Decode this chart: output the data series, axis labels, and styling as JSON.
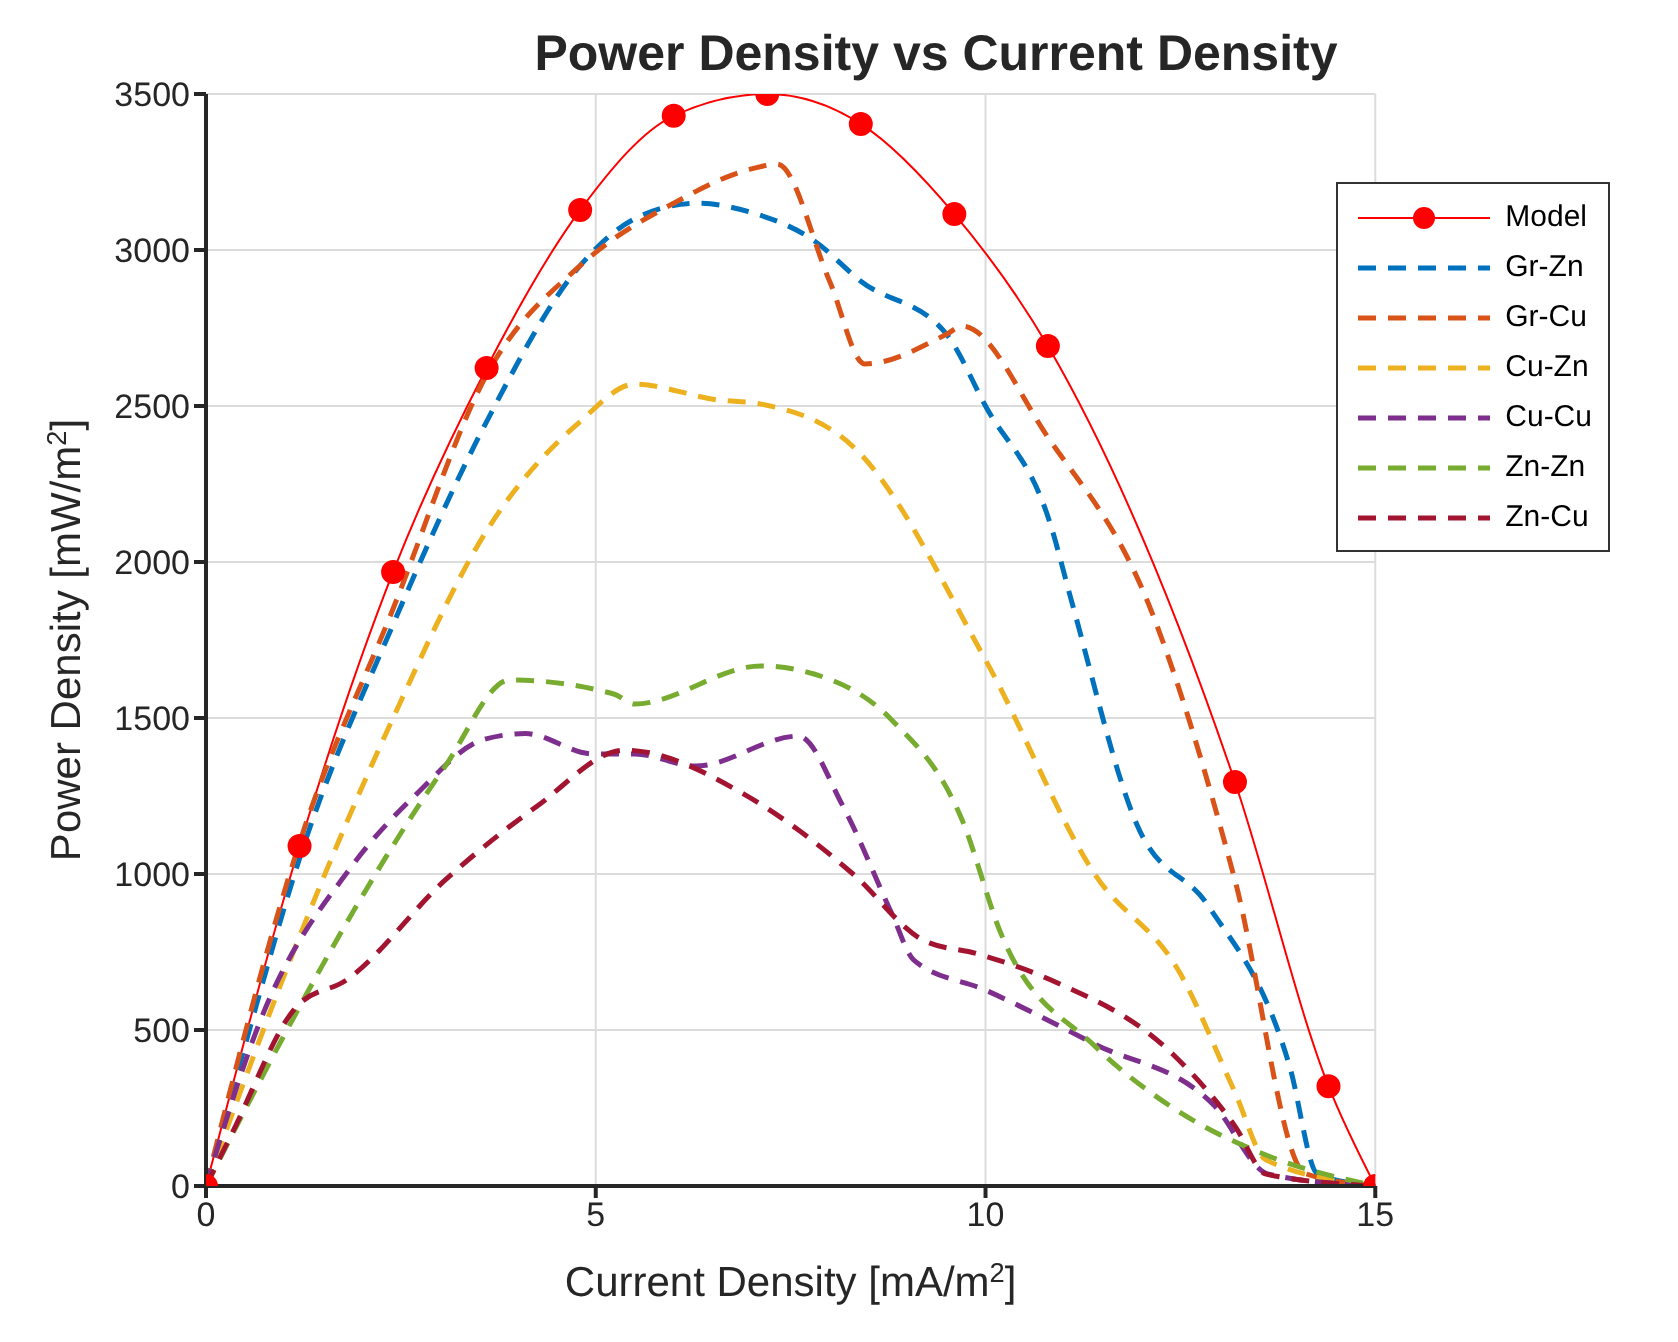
{
  "chart_data": {
    "type": "line",
    "title": "Power Density vs Current Density",
    "xlabel": "Current Density [mA/m$^{2}$]",
    "ylabel": "Power Density [mW/m$^{2}$]",
    "xlim": [
      0,
      15
    ],
    "xticks": [
      0,
      5,
      10,
      15
    ],
    "ylim": [
      0,
      3500
    ],
    "yticks": [
      0,
      500,
      1000,
      1500,
      2000,
      2500,
      3000,
      3500
    ],
    "grid": true,
    "legend": "top right",
    "series": [
      {
        "name": "Model",
        "color": "#ff0000",
        "marker": "circle",
        "line_style": "solid",
        "x": [
          0,
          1.2,
          2.4,
          3.6,
          4.8,
          6,
          7.2,
          8.4,
          9.6,
          10.8,
          12,
          13.2,
          14.4,
          15
        ],
        "values": [
          0,
          1090,
          1968,
          2622,
          3128,
          3430,
          3500,
          3404,
          3115,
          2692,
          null,
          1295,
          320,
          0
        ]
      },
      {
        "name": "Gr-Zn",
        "color": "#0072bd",
        "marker": "none",
        "line_style": "dashed",
        "x": [
          0,
          0.5,
          1.2,
          2.4,
          3.6,
          4.8,
          5.5,
          6.3,
          7,
          7.8,
          8.4,
          9.5,
          10,
          10.84,
          11.1,
          11.95,
          12.86,
          13.9,
          14.26,
          15
        ],
        "values": [
          0,
          450,
          1050,
          1800,
          2450,
          2950,
          3100,
          3150,
          3120,
          3030,
          2900,
          2730,
          2500,
          2115,
          1878,
          1154,
          897,
          385,
          38,
          0
        ]
      },
      {
        "name": "Gr-Cu",
        "color": "#d95319",
        "marker": "none",
        "line_style": "dashed",
        "x": [
          0,
          1.2,
          2.4,
          3.6,
          4.8,
          6,
          7,
          7.33,
          8,
          8.45,
          9.5,
          9.7,
          10.8,
          12.1,
          13.2,
          14.1,
          15
        ],
        "values": [
          0,
          1100,
          1850,
          2600,
          2950,
          3150,
          3260,
          3275,
          2900,
          2635,
          2730,
          2756,
          2400,
          1860,
          980,
          40,
          0
        ]
      },
      {
        "name": "Cu-Zn",
        "color": "#edb120",
        "marker": "none",
        "line_style": "dashed",
        "x": [
          0,
          1.2,
          2.4,
          3.6,
          4.8,
          5.5,
          6.55,
          7.12,
          8.3,
          10,
          11.4,
          12.5,
          13.2,
          13.6,
          15
        ],
        "values": [
          0,
          800,
          1500,
          2100,
          2450,
          2570,
          2520,
          2506,
          2370,
          1686,
          1000,
          680,
          300,
          83,
          0
        ]
      },
      {
        "name": "Cu-Cu",
        "color": "#7e2f8e",
        "marker": "none",
        "line_style": "dashed",
        "x": [
          0,
          0.67,
          1.87,
          2.7,
          3.55,
          4.1,
          4.96,
          5.5,
          6.28,
          7.6,
          8.17,
          8.8,
          9.08,
          10,
          11.4,
          12.94,
          13.63,
          15
        ],
        "values": [
          0,
          513,
          1025,
          1256,
          1430,
          1450,
          1385,
          1385,
          1346,
          1442,
          1218,
          872,
          724,
          628,
          455,
          256,
          38,
          0
        ]
      },
      {
        "name": "Zn-Zn",
        "color": "#77ac30",
        "marker": "none",
        "line_style": "dashed",
        "x": [
          0,
          0.97,
          1.87,
          3.07,
          3.9,
          5.23,
          5.5,
          7.12,
          7.8,
          8.8,
          9.7,
          10.2,
          11.4,
          12.37,
          13.63,
          15
        ],
        "values": [
          0,
          468,
          872,
          1346,
          1622,
          1577,
          1545,
          1667,
          1641,
          1493,
          1173,
          808,
          449,
          256,
          96,
          0
        ]
      },
      {
        "name": "Zn-Cu",
        "color": "#a2142f",
        "marker": "none",
        "line_style": "dashed",
        "x": [
          0,
          0.33,
          1.17,
          1.8,
          3.07,
          4.25,
          5.37,
          6.9,
          7.6,
          8.3,
          9.2,
          9.9,
          10.84,
          12.4,
          13.2,
          13.6,
          15
        ],
        "values": [
          0,
          167,
          577,
          660,
          981,
          1218,
          1397,
          1256,
          1141,
          1000,
          788,
          744,
          660,
          423,
          192,
          38,
          0
        ]
      }
    ]
  }
}
